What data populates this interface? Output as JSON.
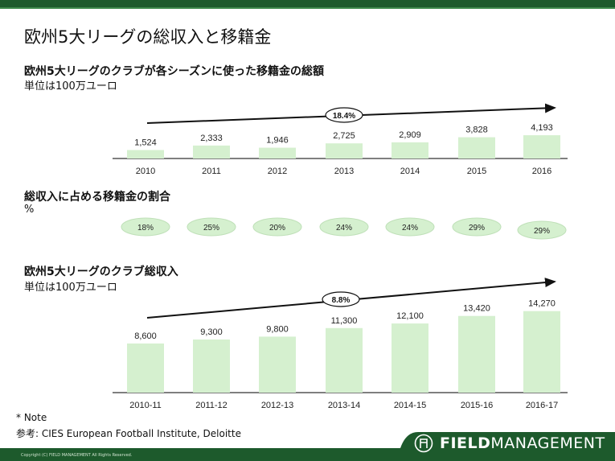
{
  "title": "欧州5大リーグの総収入と移籍金",
  "chart_data": [
    {
      "type": "bar",
      "title": "欧州5大リーグのクラブが各シーズンに使った移籍金の総額",
      "subtitle": "単位は100万ユーロ",
      "categories": [
        "2010",
        "2011",
        "2012",
        "2013",
        "2014",
        "2015",
        "2016"
      ],
      "values": [
        1524,
        2333,
        1946,
        2725,
        2909,
        3828,
        4193
      ],
      "labels": [
        "1,524",
        "2,333",
        "1,946",
        "2,725",
        "2,909",
        "3,828",
        "4,193"
      ],
      "growth_label": "18.4%",
      "bar_color": "#d5f0cf"
    },
    {
      "type": "table",
      "title": "総収入に占める移籍金の割合",
      "subtitle": "%",
      "categories": [
        "2010",
        "2011",
        "2012",
        "2013",
        "2014",
        "2015",
        "2016"
      ],
      "values": [
        "18%",
        "25%",
        "20%",
        "24%",
        "24%",
        "29%",
        "29%"
      ]
    },
    {
      "type": "bar",
      "title": "欧州5大リーグのクラブ総収入",
      "subtitle": "単位は100万ユーロ",
      "categories": [
        "2010-11",
        "2011-12",
        "2012-13",
        "2013-14",
        "2014-15",
        "2015-16",
        "2016-17"
      ],
      "values": [
        8600,
        9300,
        9800,
        11300,
        12100,
        13420,
        14270
      ],
      "labels": [
        "8,600",
        "9,300",
        "9,800",
        "11,300",
        "12,100",
        "13,420",
        "14,270"
      ],
      "growth_label": "8.8%",
      "bar_color": "#d5f0cf"
    }
  ],
  "footer": {
    "note": "* Note",
    "source": "参考: CIES European Football Institute, Deloitte",
    "brand_bold": "FIELD",
    "brand_rest": "MANAGEMENT",
    "copyright": "Copyright (C) FIELD MANAGEMENT All Rights Reserved.",
    "color": "#1d5a2c"
  }
}
